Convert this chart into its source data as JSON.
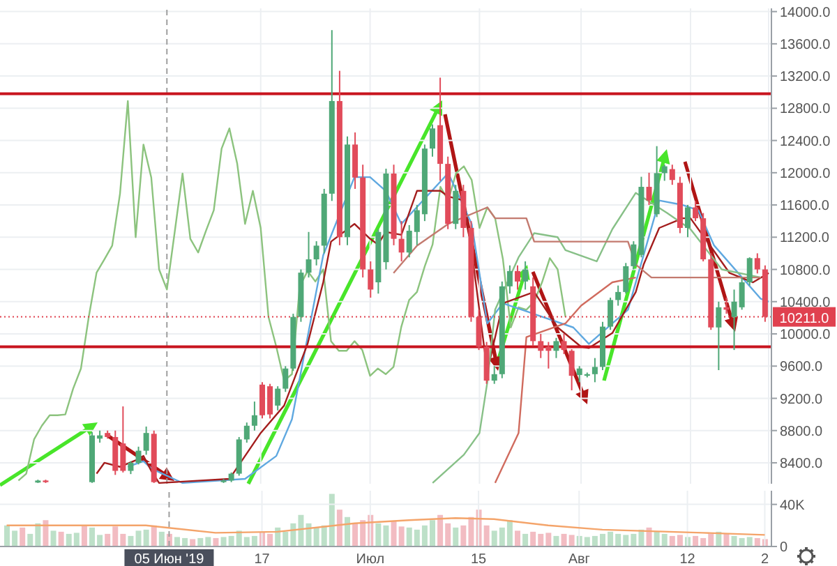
{
  "chart_data": [
    {
      "type": "candlestick",
      "tick_labels": "y",
      "grid": true,
      "categories": [
        null,
        null,
        null,
        null,
        null,
        null,
        null,
        null,
        null,
        null,
        null,
        null,
        null,
        null,
        null,
        null,
        null,
        null,
        null,
        null,
        null,
        "05 Июн '19",
        null,
        null,
        null,
        null,
        null,
        null,
        null,
        null,
        null,
        null,
        null,
        "17",
        null,
        null,
        null,
        null,
        null,
        null,
        null,
        null,
        null,
        null,
        null,
        null,
        null,
        "Июл",
        null,
        null,
        null,
        null,
        null,
        null,
        null,
        null,
        null,
        null,
        null,
        null,
        null,
        "15",
        null,
        null,
        null,
        null,
        null,
        null,
        null,
        null,
        null,
        null,
        null,
        null,
        "Авг",
        null,
        null,
        null,
        null,
        null,
        null,
        null,
        null,
        null,
        null,
        null,
        null,
        null,
        "12",
        null,
        null,
        null,
        null,
        null,
        null,
        null,
        null,
        null,
        "2"
      ],
      "ohlc": [
        null,
        null,
        null,
        null,
        [
          8155,
          8190,
          8150,
          8180
        ],
        [
          8180,
          8190,
          8150,
          8160
        ],
        null,
        null,
        null,
        null,
        null,
        [
          8160,
          8780,
          8150,
          8740
        ],
        [
          8700,
          8800,
          8650,
          8740
        ],
        [
          8770,
          8800,
          8700,
          8720
        ],
        [
          8720,
          8800,
          8250,
          8300
        ],
        [
          8640,
          9100,
          8280,
          8300
        ],
        [
          8300,
          8420,
          8260,
          8400
        ],
        [
          8400,
          8600,
          8380,
          8550
        ],
        [
          8550,
          8850,
          8500,
          8770
        ],
        [
          8760,
          8800,
          8150,
          8160
        ],
        null,
        null,
        null,
        null,
        null,
        null,
        null,
        null,
        [
          8160,
          8200,
          8150,
          8180
        ],
        [
          8180,
          8280,
          8160,
          8265
        ],
        [
          8265,
          8720,
          8240,
          8690
        ],
        [
          8690,
          8900,
          8650,
          8860
        ],
        [
          8860,
          9160,
          8800,
          8990
        ],
        [
          9370,
          9400,
          8950,
          8990
        ],
        [
          9350,
          9380,
          8950,
          9000
        ],
        [
          9110,
          9350,
          9050,
          9320
        ],
        [
          9320,
          9600,
          9280,
          9570
        ],
        [
          9570,
          10250,
          9540,
          10210
        ],
        [
          10210,
          10800,
          10150,
          10760
        ],
        [
          10760,
          11265,
          10700,
          10925
        ],
        [
          10925,
          11150,
          10850,
          11095
        ],
        [
          11095,
          11800,
          11000,
          11740
        ],
        [
          11740,
          13770,
          11650,
          12890
        ],
        [
          12890,
          13265,
          11100,
          11200
        ],
        [
          11200,
          12450,
          11100,
          12350
        ],
        [
          12350,
          12500,
          11800,
          11940
        ],
        [
          11940,
          12100,
          10700,
          10800
        ],
        [
          10800,
          10900,
          10450,
          10550
        ],
        [
          10640,
          11300,
          10500,
          11265
        ],
        [
          10890,
          12050,
          10800,
          11990
        ],
        [
          11990,
          12100,
          11100,
          11180
        ],
        [
          11180,
          11400,
          10900,
          11010
        ],
        [
          11010,
          11350,
          10950,
          11280
        ],
        [
          11265,
          11600,
          11100,
          11535
        ],
        [
          11485,
          12350,
          11400,
          12300
        ],
        [
          12300,
          12600,
          12200,
          12550
        ],
        [
          12590,
          13180,
          11900,
          12110
        ],
        [
          12110,
          12200,
          11300,
          11365
        ],
        [
          11365,
          11850,
          11300,
          11775
        ],
        [
          11775,
          11850,
          11200,
          11315
        ],
        [
          11315,
          11400,
          10150,
          10210
        ],
        [
          10210,
          10300,
          9800,
          9840
        ],
        [
          9840,
          9900,
          9380,
          9420
        ],
        [
          9420,
          9600,
          9380,
          9500
        ],
        [
          9500,
          10650,
          9450,
          10590
        ],
        [
          10590,
          10850,
          10500,
          10780
        ],
        [
          10780,
          10850,
          10550,
          10650
        ],
        [
          10650,
          10900,
          10550,
          10800
        ],
        [
          10590,
          10700,
          9850,
          9910
        ],
        [
          9910,
          10000,
          9700,
          9790
        ],
        [
          9840,
          9900,
          9570,
          9790
        ],
        [
          9790,
          9950,
          9700,
          9910
        ],
        [
          9910,
          10000,
          9750,
          9800
        ],
        [
          9790,
          9810,
          9300,
          9480
        ],
        [
          9490,
          9600,
          9400,
          9570
        ],
        [
          9480,
          9520,
          9460,
          9500
        ],
        [
          9500,
          9700,
          9400,
          9590
        ],
        [
          9590,
          10150,
          9550,
          10090
        ],
        [
          10090,
          10450,
          10050,
          10420
        ],
        [
          10420,
          10600,
          10350,
          10520
        ],
        [
          10520,
          10880,
          10500,
          10840
        ],
        [
          10840,
          11150,
          10800,
          11110
        ],
        [
          10980,
          11950,
          10950,
          11825
        ],
        [
          11825,
          12000,
          11600,
          11655
        ],
        [
          11485,
          12330,
          11450,
          11995
        ],
        [
          11995,
          12100,
          11900,
          12080
        ],
        [
          12045,
          12100,
          11850,
          11910
        ],
        [
          11875,
          11950,
          11250,
          11315
        ],
        [
          11315,
          11600,
          11200,
          11570
        ],
        [
          11570,
          11650,
          11400,
          11435
        ],
        [
          11435,
          11500,
          10900,
          10925
        ],
        [
          10925,
          11000,
          10050,
          10080
        ],
        [
          10080,
          10400,
          9550,
          10330
        ],
        [
          10330,
          10450,
          10250,
          10300
        ],
        [
          10210,
          10550,
          9800,
          10400
        ],
        [
          10330,
          10700,
          10300,
          10640
        ],
        [
          10640,
          10950,
          10600,
          10940
        ],
        [
          10940,
          11000,
          10750,
          10800
        ],
        [
          10800,
          10850,
          10150,
          10211
        ]
      ],
      "colors": [
        null,
        null,
        null,
        null,
        "#4fa877",
        "#e14b5a",
        null,
        null,
        null,
        null,
        null,
        "#4fa877",
        "#4fa877",
        "#e14b5a",
        "#e14b5a",
        "#e14b5a",
        "#4fa877",
        "#4fa877",
        "#4fa877",
        "#e14b5a",
        null,
        null,
        null,
        null,
        null,
        null,
        null,
        null,
        "#4fa877",
        "#4fa877",
        "#4fa877",
        "#4fa877",
        "#4fa877",
        "#e14b5a",
        "#e14b5a",
        "#4fa877",
        "#4fa877",
        "#4fa877",
        "#4fa877",
        "#4fa877",
        "#4fa877",
        "#4fa877",
        "#4fa877",
        "#e14b5a",
        "#4fa877",
        "#e14b5a",
        "#e14b5a",
        "#e14b5a",
        "#4fa877",
        "#4fa877",
        "#e14b5a",
        "#e14b5a",
        "#4fa877",
        "#4fa877",
        "#4fa877",
        "#4fa877",
        "#e14b5a",
        "#e14b5a",
        "#4fa877",
        "#e14b5a",
        "#e14b5a",
        "#e14b5a",
        "#e14b5a",
        "#4fa877",
        "#4fa877",
        "#4fa877",
        "#e14b5a",
        "#4fa877",
        "#e14b5a",
        "#e14b5a",
        "#e14b5a",
        "#4fa877",
        "#e14b5a",
        "#e14b5a",
        "#4fa877",
        "#4fa877",
        "#4fa877",
        "#4fa877",
        "#4fa877",
        "#4fa877",
        "#4fa877",
        "#4fa877",
        "#4fa877",
        "#e14b5a",
        "#4fa877",
        "#4fa877",
        "#e14b5a",
        "#e14b5a",
        "#4fa877",
        "#e14b5a",
        "#e14b5a",
        "#e14b5a",
        "#4fa877",
        "#e14b5a",
        "#4fa877",
        "#4fa877",
        "#4fa877",
        "#e14b5a",
        "#e14b5a"
      ],
      "series": [
        {
          "type": "line",
          "color": "#8cc37e",
          "values": [
            null,
            null,
            8180,
            8265,
            8690,
            8860,
            8990,
            8990,
            9000,
            9320,
            9570,
            10210,
            10760,
            10925,
            11095,
            11740,
            12890,
            11200,
            12350,
            11940,
            10800,
            10550,
            11265,
            11990,
            11180,
            11010,
            11280,
            11535,
            12300,
            12550,
            12110,
            11365,
            11775,
            11315,
            10210,
            9840,
            9420,
            9500,
            10590,
            10780,
            10650,
            10800,
            9910,
            9790,
            9790,
            9910,
            9800,
            9480,
            9570,
            9500,
            9590,
            10090,
            10420,
            10520,
            10840,
            11110,
            11825,
            11655,
            11995,
            12080,
            11910,
            11315,
            11570,
            11435,
            10925,
            10080,
            10330,
            10300,
            10400,
            10640,
            10940,
            10800,
            10211,
            null,
            null,
            null,
            null,
            null,
            null,
            null,
            null,
            null,
            null,
            null,
            null,
            null,
            null,
            null,
            null,
            null,
            null,
            null,
            null,
            null,
            null,
            null,
            null,
            null,
            null
          ]
        },
        {
          "type": "line",
          "color": "#5fa8e0",
          "values": [
            null,
            null,
            null,
            null,
            null,
            null,
            null,
            null,
            null,
            null,
            null,
            null,
            null,
            null,
            null,
            null,
            8350,
            null,
            8420,
            8330,
            null,
            null,
            null,
            8150,
            null,
            null,
            null,
            null,
            null,
            null,
            null,
            8200,
            null,
            null,
            null,
            8485,
            null,
            8940,
            null,
            9960,
            null,
            10975,
            null,
            null,
            null,
            11945,
            null,
            11945,
            null,
            11775,
            null,
            11365,
            null,
            null,
            null,
            null,
            null,
            11995,
            null,
            null,
            11365,
            null,
            10130,
            null,
            10380,
            null,
            null,
            null,
            null,
            null,
            null,
            null,
            null,
            10080,
            null,
            9875,
            null,
            null,
            null,
            null,
            10300,
            null,
            null,
            null,
            11655,
            null,
            null,
            11600,
            null,
            11535,
            null,
            11100,
            null,
            null,
            null,
            null,
            null,
            10435,
            10400
          ]
        },
        {
          "type": "line",
          "color": "#a31d1d",
          "values": [
            null,
            null,
            null,
            null,
            null,
            null,
            null,
            null,
            null,
            null,
            null,
            null,
            8265,
            8400,
            null,
            8350,
            null,
            8430,
            8485,
            8300,
            8150,
            null,
            null,
            null,
            null,
            null,
            null,
            null,
            null,
            8200,
            null,
            null,
            null,
            8770,
            null,
            null,
            9110,
            null,
            null,
            9875,
            null,
            10640,
            11145,
            null,
            null,
            11365,
            null,
            11180,
            11110,
            11265,
            null,
            11230,
            null,
            11775,
            null,
            null,
            11775,
            11705,
            null,
            11655,
            11030,
            null,
            9535,
            null,
            10380,
            null,
            null,
            null,
            10520,
            null,
            null,
            10080,
            null,
            null,
            9840,
            9825,
            null,
            null,
            10010,
            null,
            null,
            10520,
            10860,
            null,
            11315,
            null,
            null,
            11435,
            11435,
            null,
            null,
            11030,
            null,
            10755,
            null,
            null,
            10640,
            null,
            10755
          ]
        },
        {
          "type": "line",
          "color": "#87c087",
          "values": [
            null,
            null,
            null,
            null,
            null,
            null,
            null,
            null,
            null,
            null,
            null,
            null,
            null,
            null,
            null,
            null,
            null,
            null,
            null,
            null,
            null,
            null,
            null,
            null,
            null,
            null,
            null,
            null,
            null,
            null,
            null,
            null,
            null,
            null,
            null,
            null,
            null,
            null,
            null,
            null,
            null,
            null,
            null,
            null,
            null,
            null,
            null,
            null,
            null,
            null,
            null,
            null,
            null,
            null,
            null,
            8150,
            null,
            null,
            null,
            8500,
            null,
            8770,
            9400,
            10300,
            null,
            null,
            10950,
            null,
            11250,
            null,
            null,
            11200,
            11040,
            null,
            null,
            null,
            10900,
            null,
            11300,
            null,
            null,
            11750,
            null,
            null,
            null,
            11500,
            null,
            null,
            11300,
            null,
            null,
            null,
            10800,
            null,
            null,
            null,
            null,
            10700,
            null
          ]
        },
        {
          "type": "line",
          "color": "#c37a6f",
          "values": [
            null,
            null,
            null,
            null,
            null,
            null,
            null,
            null,
            null,
            null,
            null,
            null,
            null,
            null,
            null,
            null,
            null,
            null,
            null,
            null,
            null,
            null,
            null,
            null,
            null,
            null,
            null,
            null,
            null,
            null,
            null,
            null,
            null,
            null,
            null,
            null,
            null,
            null,
            null,
            null,
            null,
            null,
            null,
            null,
            null,
            null,
            null,
            null,
            null,
            null,
            10755,
            null,
            null,
            11095,
            null,
            null,
            null,
            11365,
            null,
            null,
            null,
            null,
            11570,
            11435,
            null,
            null,
            null,
            11435,
            11145,
            null,
            null,
            null,
            null,
            null,
            null,
            null,
            null,
            null,
            null,
            null,
            11145,
            10860,
            null,
            10700,
            null,
            null,
            null,
            null,
            null,
            null,
            null,
            null,
            null,
            null,
            null,
            null,
            null,
            10700,
            null
          ]
        },
        {
          "type": "line",
          "color": "#d06b5e",
          "values": [
            null,
            null,
            null,
            null,
            null,
            null,
            null,
            null,
            null,
            null,
            null,
            null,
            null,
            null,
            null,
            null,
            null,
            null,
            null,
            null,
            null,
            null,
            null,
            null,
            null,
            null,
            null,
            null,
            null,
            null,
            null,
            null,
            null,
            null,
            null,
            null,
            null,
            null,
            null,
            null,
            null,
            null,
            null,
            null,
            null,
            null,
            null,
            null,
            null,
            null,
            null,
            null,
            null,
            null,
            null,
            null,
            null,
            null,
            null,
            null,
            null,
            null,
            null,
            8150,
            null,
            null,
            8770,
            9960,
            null,
            null,
            null,
            null,
            10130,
            null,
            10350,
            null,
            null,
            null,
            10640,
            null,
            null,
            10700,
            null,
            null,
            null,
            null,
            null,
            null,
            null,
            null,
            null,
            null,
            null,
            null,
            null,
            null,
            null,
            null,
            null
          ]
        }
      ],
      "ylim": [
        8140,
        14040
      ],
      "yticks": [
        {
          "value": 8400,
          "label": "8400.0"
        },
        {
          "value": 8800,
          "label": "8800.0"
        },
        {
          "value": 9200,
          "label": "9200.0"
        },
        {
          "value": 9600,
          "label": "9600.0"
        },
        {
          "value": 10000,
          "label": "10000.0"
        },
        {
          "value": 10400,
          "label": "10400.0"
        },
        {
          "value": 10800,
          "label": "10800.0"
        },
        {
          "value": 11200,
          "label": "11200.0"
        },
        {
          "value": 11600,
          "label": "11600.0"
        },
        {
          "value": 12000,
          "label": "12000.0"
        },
        {
          "value": 12400,
          "label": "12400.0"
        },
        {
          "value": 12800,
          "label": "12800.0"
        },
        {
          "value": 13200,
          "label": "13200.0"
        },
        {
          "value": 13600,
          "label": "13600.0"
        },
        {
          "value": 14000,
          "label": "14000.0"
        }
      ],
      "ref_lines": [
        {
          "axis": "y",
          "value": 12980,
          "color": "#c8141e"
        },
        {
          "axis": "y",
          "value": 9840,
          "color": "#c8141e"
        },
        {
          "axis": "y",
          "value": 10211,
          "label": "10211.0",
          "color": "#e0414f",
          "line_style": "dotted"
        },
        {
          "axis": "x",
          "value": "05 Июн '19",
          "color": "#9e9e9e",
          "line_style": "dashed"
        }
      ]
    },
    {
      "type": "bar",
      "grid": true,
      "categories": [
        null,
        null,
        null,
        null,
        null,
        null,
        null,
        null,
        null,
        null,
        null,
        null,
        null,
        null,
        null,
        null,
        null,
        null,
        null,
        null,
        null,
        "05 Июн '19",
        null,
        null,
        null,
        null,
        null,
        null,
        null,
        null,
        null,
        null,
        null,
        "17",
        null,
        null,
        null,
        null,
        null,
        null,
        null,
        null,
        null,
        null,
        null,
        null,
        null,
        "Июл",
        null,
        null,
        null,
        null,
        null,
        null,
        null,
        null,
        null,
        null,
        null,
        null,
        null,
        "15",
        null,
        null,
        null,
        null,
        null,
        null,
        null,
        null,
        null,
        null,
        null,
        null,
        "Авг",
        null,
        null,
        null,
        null,
        null,
        null,
        null,
        null,
        null,
        null,
        null,
        null,
        null,
        "12",
        null,
        null,
        null,
        null,
        null,
        null,
        null,
        null,
        null,
        "2"
      ],
      "series": [
        {
          "type": "bar",
          "values": [
            20000,
            15000,
            18000,
            12000,
            22000,
            25000,
            15000,
            14000,
            12000,
            13000,
            20000,
            18000,
            11000,
            12000,
            19000,
            12000,
            10000,
            15000,
            16000,
            20000,
            14000,
            12000,
            9000,
            8000,
            7000,
            8000,
            9000,
            8000,
            9000,
            10000,
            15000,
            9000,
            10000,
            14000,
            12000,
            18000,
            14000,
            22000,
            30000,
            22000,
            18000,
            20000,
            50000,
            35000,
            28000,
            22000,
            25000,
            30000,
            22000,
            20000,
            24000,
            19000,
            18000,
            16000,
            20000,
            25000,
            30000,
            22000,
            18000,
            20000,
            28000,
            35000,
            20000,
            15000,
            18000,
            25000,
            15000,
            12000,
            14000,
            12000,
            13000,
            10000,
            12000,
            11000,
            10000,
            9000,
            10000,
            12000,
            14000,
            12000,
            11000,
            12000,
            16000,
            18000,
            14000,
            12000,
            10000,
            11000,
            9000,
            10000,
            8000,
            12000,
            14000,
            12000,
            10000,
            8000,
            9000,
            8000,
            7000
          ],
          "colors": [
            "#bde0c8",
            "#bde0c8",
            "#f2bcc2",
            "#bde0c8",
            "#bde0c8",
            "#f2bcc2",
            "#bde0c8",
            "#f2bcc2",
            "#bde0c8",
            "#bde0c8",
            "#f2bcc2",
            "#bde0c8",
            "#bde0c8",
            "#f2bcc2",
            "#f2bcc2",
            "#f2bcc2",
            "#bde0c8",
            "#bde0c8",
            "#bde0c8",
            "#f2bcc2",
            "#bde0c8",
            "#f2bcc2",
            "#bde0c8",
            "#bde0c8",
            "#f2bcc2",
            "#bde0c8",
            "#bde0c8",
            "#f2bcc2",
            "#bde0c8",
            "#bde0c8",
            "#bde0c8",
            "#bde0c8",
            "#bde0c8",
            "#f2bcc2",
            "#f2bcc2",
            "#bde0c8",
            "#bde0c8",
            "#bde0c8",
            "#bde0c8",
            "#bde0c8",
            "#bde0c8",
            "#bde0c8",
            "#bde0c8",
            "#f2bcc2",
            "#bde0c8",
            "#f2bcc2",
            "#f2bcc2",
            "#f2bcc2",
            "#bde0c8",
            "#bde0c8",
            "#f2bcc2",
            "#f2bcc2",
            "#bde0c8",
            "#bde0c8",
            "#bde0c8",
            "#bde0c8",
            "#f2bcc2",
            "#f2bcc2",
            "#bde0c8",
            "#f2bcc2",
            "#f2bcc2",
            "#f2bcc2",
            "#f2bcc2",
            "#bde0c8",
            "#bde0c8",
            "#bde0c8",
            "#f2bcc2",
            "#bde0c8",
            "#f2bcc2",
            "#f2bcc2",
            "#f2bcc2",
            "#bde0c8",
            "#f2bcc2",
            "#f2bcc2",
            "#bde0c8",
            "#bde0c8",
            "#bde0c8",
            "#bde0c8",
            "#bde0c8",
            "#bde0c8",
            "#bde0c8",
            "#bde0c8",
            "#bde0c8",
            "#f2bcc2",
            "#bde0c8",
            "#bde0c8",
            "#f2bcc2",
            "#f2bcc2",
            "#bde0c8",
            "#f2bcc2",
            "#f2bcc2",
            "#f2bcc2",
            "#bde0c8",
            "#f2bcc2",
            "#bde0c8",
            "#bde0c8",
            "#bde0c8",
            "#f2bcc2",
            "#f2bcc2"
          ]
        },
        {
          "type": "line",
          "color": "#f4a46a",
          "values": [
            20000,
            null,
            null,
            null,
            null,
            null,
            null,
            null,
            null,
            null,
            20000,
            null,
            null,
            null,
            null,
            null,
            null,
            null,
            20000,
            null,
            null,
            null,
            null,
            null,
            null,
            null,
            null,
            13000,
            null,
            null,
            null,
            null,
            null,
            null,
            null,
            14000,
            null,
            null,
            null,
            null,
            null,
            null,
            null,
            null,
            null,
            22000,
            null,
            null,
            null,
            null,
            null,
            null,
            25000,
            null,
            null,
            null,
            null,
            null,
            27000,
            null,
            null,
            null,
            null,
            26000,
            null,
            null,
            null,
            null,
            null,
            null,
            20000,
            null,
            null,
            null,
            null,
            null,
            null,
            16000,
            null,
            null,
            null,
            null,
            null,
            null,
            null,
            null,
            null,
            null,
            null,
            null,
            13000,
            null,
            null,
            null,
            null,
            null,
            null,
            null,
            11000
          ]
        }
      ],
      "ylim": [
        0,
        53000
      ],
      "yticks": [
        0,
        {
          "value": 40000,
          "label": "40K"
        }
      ],
      "ref_lines": [
        {
          "axis": "x",
          "value": "05 Июн '19",
          "color": "#9e9e9e",
          "line_style": "dashed"
        }
      ]
    }
  ]
}
